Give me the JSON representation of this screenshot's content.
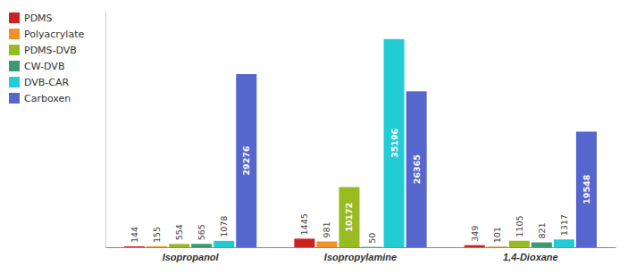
{
  "chart_data": {
    "type": "bar",
    "categories": [
      "Isopropanol",
      "Isopropylamine",
      "1,4-Dioxane"
    ],
    "series": [
      {
        "name": "PDMS",
        "color": "#cc2222",
        "values": [
          144,
          1445,
          349
        ]
      },
      {
        "name": "Polyacrylate",
        "color": "#f0922a",
        "values": [
          155,
          981,
          101
        ]
      },
      {
        "name": "PDMS-DVB",
        "color": "#99bb22",
        "values": [
          554,
          10172,
          1105
        ]
      },
      {
        "name": "CW-DVB",
        "color": "#3a9c6e",
        "values": [
          565,
          50,
          821
        ]
      },
      {
        "name": "DVB-CAR",
        "color": "#22ccd4",
        "values": [
          1078,
          35196,
          1317
        ]
      },
      {
        "name": "Carboxen",
        "color": "#5566cc",
        "values": [
          29276,
          26365,
          19548
        ]
      }
    ],
    "ylim": [
      0,
      40000
    ],
    "grid": false,
    "legend": "upper left",
    "data_labels": true,
    "tick_labels": "x"
  }
}
